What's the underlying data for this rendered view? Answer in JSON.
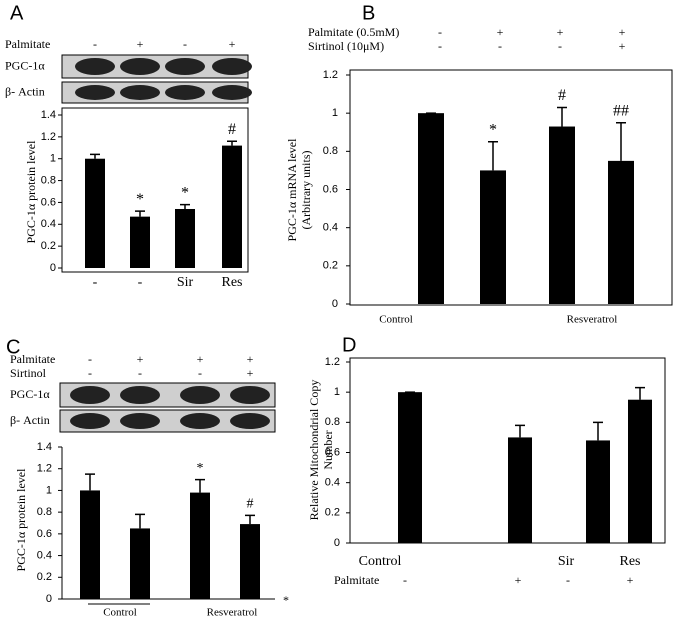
{
  "chart_data": [
    {
      "type": "bar",
      "panel": "A",
      "rows": [
        {
          "name": "Palmitate",
          "signs": [
            "-",
            "+",
            "-",
            "+"
          ]
        }
      ],
      "blots": [
        "PGC-1α",
        "β- Actin"
      ],
      "ylabel": [
        "PGC-1α protein level"
      ],
      "categories": [
        "-",
        "-",
        "Sir",
        "Res"
      ],
      "values": [
        1.0,
        0.47,
        0.54,
        1.12
      ],
      "errors": [
        0.04,
        0.05,
        0.04,
        0.04
      ],
      "annotations": [
        null,
        "*",
        "*",
        "#"
      ],
      "color": "#000000",
      "ylim": [
        0,
        1.4
      ],
      "yticks": [
        0,
        0.2,
        0.4,
        0.6,
        0.8,
        1,
        1.2,
        1.4
      ]
    },
    {
      "type": "bar",
      "panel": "B",
      "rows": [
        {
          "name": "Palmitate (0.5mM)",
          "signs": [
            "-",
            "+",
            "+",
            "+"
          ]
        },
        {
          "name": "Sirtinol  (10μM)",
          "signs": [
            "-",
            "-",
            "-",
            "+"
          ]
        }
      ],
      "ylabel": [
        "PGC-1α mRNA level",
        "(Arbitrary units)"
      ],
      "group_labels": [
        "Control",
        "Resveratrol"
      ],
      "values": [
        1.0,
        0.7,
        0.93,
        0.75
      ],
      "errors": [
        0,
        0.15,
        0.1,
        0.2
      ],
      "annotations": [
        null,
        "*",
        "#",
        "##"
      ],
      "color": "#000000",
      "ylim": [
        0,
        1.2
      ],
      "yticks": [
        0,
        0.2,
        0.4,
        0.6,
        0.8,
        1,
        1.2
      ]
    },
    {
      "type": "bar",
      "panel": "C",
      "rows": [
        {
          "name": "Palmitate",
          "signs": [
            "-",
            "+",
            "+",
            "+"
          ]
        },
        {
          "name": "Sirtinol",
          "signs": [
            "-",
            "-",
            "-",
            "+"
          ]
        }
      ],
      "blots": [
        "PGC-1α",
        "β- Actin"
      ],
      "ylabel": [
        "PGC-1α protein level"
      ],
      "group_labels": [
        "Control",
        "Resveratrol"
      ],
      "values": [
        1.0,
        0.65,
        0.98,
        0.69
      ],
      "errors": [
        0.15,
        0.13,
        0.12,
        0.08
      ],
      "annotations": [
        null,
        null,
        "*",
        "#"
      ],
      "footnote": "*",
      "color": "#000000",
      "ylim": [
        0,
        1.4
      ],
      "yticks": [
        0,
        0.2,
        0.4,
        0.6,
        0.8,
        1,
        1.2,
        1.4
      ]
    },
    {
      "type": "bar",
      "panel": "D",
      "rows": [
        {
          "name": "Palmitate",
          "signs": [
            "-",
            "+",
            "-",
            "+"
          ]
        }
      ],
      "ylabel": [
        "Relative Mitochondrial Copy",
        "Number"
      ],
      "categories": [
        "Control",
        null,
        "Sir",
        "Res"
      ],
      "values": [
        1.0,
        0.7,
        0.68,
        0.95
      ],
      "errors": [
        0,
        0.08,
        0.12,
        0.08
      ],
      "color": "#000000",
      "ylim": [
        0,
        1.2
      ],
      "yticks": [
        0,
        0.2,
        0.4,
        0.6,
        0.8,
        1,
        1.2
      ]
    }
  ]
}
